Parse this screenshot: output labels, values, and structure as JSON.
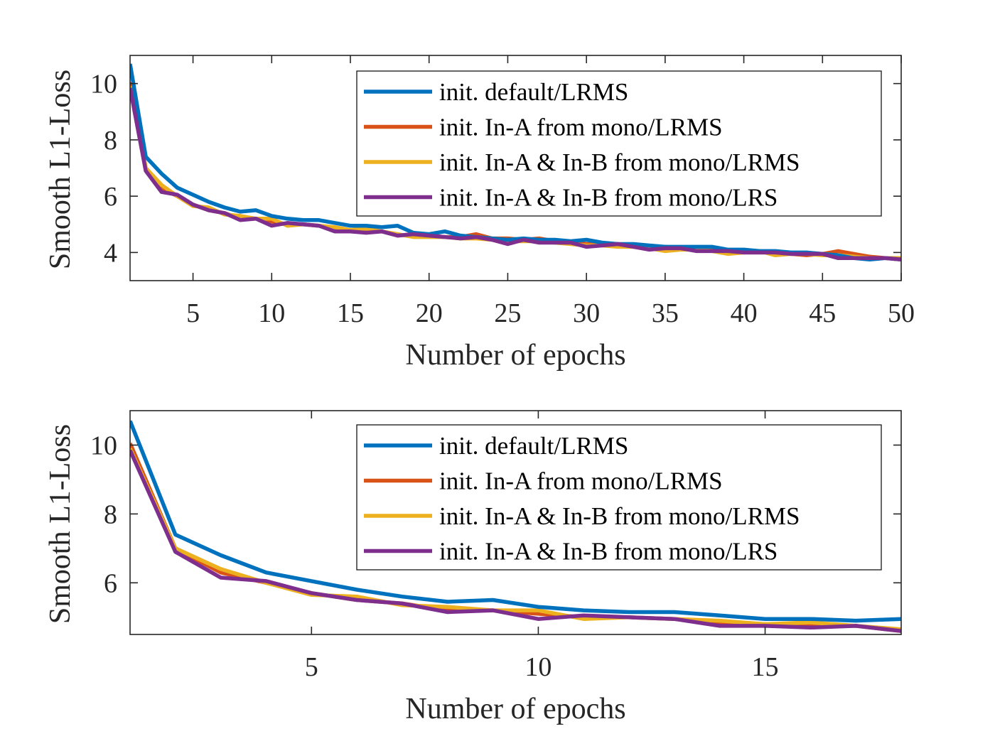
{
  "chart_data": [
    {
      "type": "line",
      "title": "",
      "xlabel": "Number of epochs",
      "ylabel": "Smooth L1-Loss",
      "xlim": [
        1,
        50
      ],
      "ylim": [
        3,
        11
      ],
      "xticks": [
        5,
        10,
        15,
        20,
        25,
        30,
        35,
        40,
        45,
        50
      ],
      "yticks": [
        4,
        6,
        8,
        10
      ],
      "legend_position": "top-right",
      "series": [
        {
          "name": "init. In-A from mono/LRMS",
          "color": "#D95319",
          "x": [
            1,
            2,
            3,
            4,
            5,
            6,
            7,
            8,
            9,
            10,
            11,
            12,
            13,
            14,
            15,
            16,
            17,
            18,
            19,
            20,
            21,
            22,
            23,
            24,
            25,
            26,
            27,
            28,
            29,
            30,
            31,
            32,
            33,
            34,
            35,
            36,
            37,
            38,
            39,
            40,
            41,
            42,
            43,
            44,
            45,
            46,
            47,
            48,
            49,
            50
          ],
          "values": [
            10.05,
            7.0,
            6.3,
            6.0,
            5.7,
            5.5,
            5.4,
            5.2,
            5.2,
            5.1,
            5.0,
            5.0,
            4.95,
            4.85,
            4.8,
            4.75,
            4.75,
            4.6,
            4.65,
            4.6,
            4.55,
            4.55,
            4.65,
            4.5,
            4.5,
            4.45,
            4.5,
            4.4,
            4.35,
            4.3,
            4.3,
            4.3,
            4.2,
            4.2,
            4.2,
            4.15,
            4.1,
            4.1,
            4.05,
            4.0,
            4.0,
            4.0,
            3.95,
            3.9,
            3.95,
            4.05,
            3.95,
            3.85,
            3.8,
            3.75
          ]
        },
        {
          "name": "init. In-A & In-B from mono/LRMS",
          "color": "#EDB120",
          "x": [
            1,
            2,
            3,
            4,
            5,
            6,
            7,
            8,
            9,
            10,
            11,
            12,
            13,
            14,
            15,
            16,
            17,
            18,
            19,
            20,
            21,
            22,
            23,
            24,
            25,
            26,
            27,
            28,
            29,
            30,
            31,
            32,
            33,
            34,
            35,
            36,
            37,
            38,
            39,
            40,
            41,
            42,
            43,
            44,
            45,
            46,
            47,
            48,
            49,
            50
          ],
          "values": [
            9.9,
            7.0,
            6.4,
            6.0,
            5.65,
            5.6,
            5.35,
            5.3,
            5.2,
            5.2,
            4.95,
            5.0,
            4.95,
            4.9,
            4.8,
            4.85,
            4.75,
            4.65,
            4.55,
            4.55,
            4.55,
            4.5,
            4.5,
            4.45,
            4.4,
            4.4,
            4.4,
            4.35,
            4.3,
            4.25,
            4.25,
            4.2,
            4.2,
            4.15,
            4.05,
            4.1,
            4.1,
            4.05,
            3.95,
            4.0,
            4.05,
            3.9,
            3.95,
            3.95,
            3.9,
            3.9,
            3.85,
            3.8,
            3.8,
            3.8
          ]
        },
        {
          "name": "init. default/LRMS",
          "color": "#0072BD",
          "x": [
            1,
            2,
            3,
            4,
            5,
            6,
            7,
            8,
            9,
            10,
            11,
            12,
            13,
            14,
            15,
            16,
            17,
            18,
            19,
            20,
            21,
            22,
            23,
            24,
            25,
            26,
            27,
            28,
            29,
            30,
            31,
            32,
            33,
            34,
            35,
            36,
            37,
            38,
            39,
            40,
            41,
            42,
            43,
            44,
            45,
            46,
            47,
            48,
            49,
            50
          ],
          "values": [
            10.7,
            7.4,
            6.8,
            6.3,
            6.05,
            5.8,
            5.6,
            5.45,
            5.5,
            5.3,
            5.2,
            5.15,
            5.15,
            5.05,
            4.95,
            4.95,
            4.9,
            4.95,
            4.7,
            4.65,
            4.75,
            4.6,
            4.55,
            4.5,
            4.45,
            4.5,
            4.45,
            4.45,
            4.4,
            4.45,
            4.35,
            4.3,
            4.3,
            4.25,
            4.2,
            4.2,
            4.2,
            4.2,
            4.1,
            4.1,
            4.05,
            4.05,
            4.0,
            4.0,
            3.95,
            3.9,
            3.8,
            3.75,
            3.8,
            3.75
          ]
        },
        {
          "name": "init. In-A & In-B from mono/LRS",
          "color": "#7E2F8E",
          "x": [
            1,
            2,
            3,
            4,
            5,
            6,
            7,
            8,
            9,
            10,
            11,
            12,
            13,
            14,
            15,
            16,
            17,
            18,
            19,
            20,
            21,
            22,
            23,
            24,
            25,
            26,
            27,
            28,
            29,
            30,
            31,
            32,
            33,
            34,
            35,
            36,
            37,
            38,
            39,
            40,
            41,
            42,
            43,
            44,
            45,
            46,
            47,
            48,
            49,
            50
          ],
          "values": [
            9.85,
            6.9,
            6.15,
            6.05,
            5.7,
            5.5,
            5.4,
            5.15,
            5.2,
            4.95,
            5.05,
            5.0,
            4.95,
            4.75,
            4.75,
            4.7,
            4.75,
            4.6,
            4.65,
            4.6,
            4.55,
            4.5,
            4.55,
            4.45,
            4.3,
            4.45,
            4.35,
            4.35,
            4.35,
            4.2,
            4.25,
            4.3,
            4.2,
            4.1,
            4.15,
            4.15,
            4.05,
            4.05,
            4.05,
            4.0,
            4.0,
            4.0,
            3.95,
            3.95,
            3.95,
            3.8,
            3.8,
            3.8,
            3.8,
            3.75
          ]
        }
      ]
    },
    {
      "type": "line",
      "title": "",
      "xlabel": "Number of epochs",
      "ylabel": "Smooth L1-Loss",
      "xlim": [
        1,
        18
      ],
      "ylim": [
        4.5,
        11
      ],
      "xticks": [
        5,
        10,
        15
      ],
      "yticks": [
        6,
        8,
        10
      ],
      "legend_position": "top-right",
      "series": [
        {
          "name": "init. In-A from mono/LRMS",
          "color": "#D95319",
          "x": [
            1,
            2,
            3,
            4,
            5,
            6,
            7,
            8,
            9,
            10,
            11,
            12,
            13,
            14,
            15,
            16,
            17,
            18
          ],
          "values": [
            10.05,
            7.0,
            6.3,
            6.0,
            5.7,
            5.5,
            5.4,
            5.2,
            5.2,
            5.1,
            5.0,
            5.0,
            4.95,
            4.85,
            4.8,
            4.75,
            4.75,
            4.6
          ]
        },
        {
          "name": "init. In-A & In-B from mono/LRMS",
          "color": "#EDB120",
          "x": [
            1,
            2,
            3,
            4,
            5,
            6,
            7,
            8,
            9,
            10,
            11,
            12,
            13,
            14,
            15,
            16,
            17,
            18
          ],
          "values": [
            9.9,
            7.0,
            6.4,
            6.0,
            5.65,
            5.6,
            5.35,
            5.3,
            5.2,
            5.2,
            4.95,
            5.0,
            4.95,
            4.9,
            4.8,
            4.85,
            4.75,
            4.65
          ]
        },
        {
          "name": "init. default/LRMS",
          "color": "#0072BD",
          "x": [
            1,
            2,
            3,
            4,
            5,
            6,
            7,
            8,
            9,
            10,
            11,
            12,
            13,
            14,
            15,
            16,
            17,
            18
          ],
          "values": [
            10.7,
            7.4,
            6.8,
            6.3,
            6.05,
            5.8,
            5.6,
            5.45,
            5.5,
            5.3,
            5.2,
            5.15,
            5.15,
            5.05,
            4.95,
            4.95,
            4.9,
            4.95
          ]
        },
        {
          "name": "init. In-A & In-B from mono/LRS",
          "color": "#7E2F8E",
          "x": [
            1,
            2,
            3,
            4,
            5,
            6,
            7,
            8,
            9,
            10,
            11,
            12,
            13,
            14,
            15,
            16,
            17,
            18
          ],
          "values": [
            9.85,
            6.9,
            6.15,
            6.05,
            5.7,
            5.5,
            5.4,
            5.15,
            5.2,
            4.95,
            5.05,
            5.0,
            4.95,
            4.75,
            4.75,
            4.7,
            4.75,
            4.6
          ]
        }
      ]
    }
  ]
}
